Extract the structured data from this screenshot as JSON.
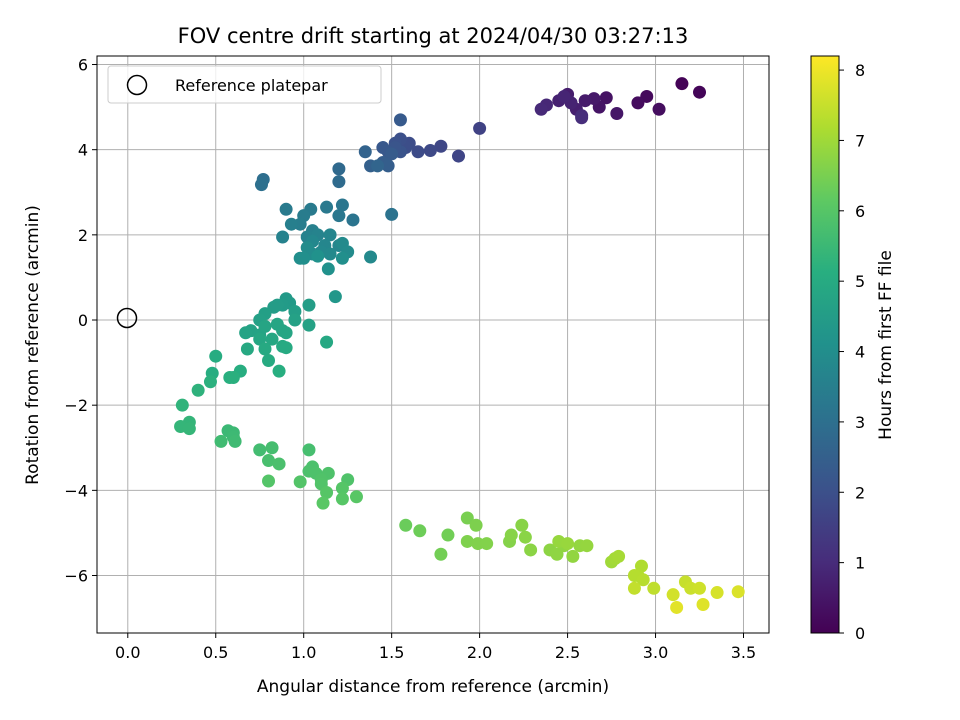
{
  "chart_data": {
    "type": "scatter",
    "title": "FOV centre drift starting at 2024/04/30 03:27:13",
    "xlabel": "Angular distance from reference (arcmin)",
    "ylabel": "Rotation from reference (arcmin)",
    "xlim": [
      -0.175,
      3.645
    ],
    "ylim": [
      -7.35,
      6.2
    ],
    "xticks": [
      "0.0",
      "0.5",
      "1.0",
      "1.5",
      "2.0",
      "2.5",
      "3.0",
      "3.5"
    ],
    "yticks": [
      "6",
      "4",
      "2",
      "0",
      "−2",
      "−4",
      "−6"
    ],
    "grid": true,
    "legend": {
      "position": "top-left",
      "entries": [
        "Reference platepar"
      ]
    },
    "reference_point": {
      "x": 0.0,
      "y": 0.0
    },
    "colorbar": {
      "label": "Hours from first FF file",
      "range": [
        0,
        8.2
      ],
      "ticks": [
        "0",
        "1",
        "2",
        "3",
        "4",
        "5",
        "6",
        "7",
        "8"
      ],
      "colormap": "viridis"
    },
    "points": [
      [
        3.15,
        5.55,
        0.05
      ],
      [
        3.25,
        5.35,
        0.1
      ],
      [
        2.95,
        5.25,
        0.2
      ],
      [
        2.9,
        5.1,
        0.25
      ],
      [
        3.02,
        4.95,
        0.3
      ],
      [
        2.72,
        5.22,
        0.4
      ],
      [
        2.68,
        5.0,
        0.45
      ],
      [
        2.78,
        4.85,
        0.5
      ],
      [
        2.65,
        5.2,
        0.55
      ],
      [
        2.6,
        5.15,
        0.6
      ],
      [
        2.5,
        5.3,
        0.65
      ],
      [
        2.55,
        4.95,
        0.7
      ],
      [
        2.45,
        5.15,
        0.75
      ],
      [
        2.52,
        5.1,
        0.8
      ],
      [
        2.48,
        5.25,
        0.85
      ],
      [
        2.38,
        5.05,
        0.9
      ],
      [
        2.35,
        4.95,
        0.95
      ],
      [
        2.58,
        4.8,
        1.0
      ],
      [
        2.58,
        4.75,
        1.05
      ],
      [
        2.0,
        4.5,
        1.6
      ],
      [
        1.88,
        3.85,
        1.7
      ],
      [
        1.78,
        4.08,
        1.75
      ],
      [
        1.72,
        3.98,
        1.8
      ],
      [
        1.65,
        3.95,
        1.85
      ],
      [
        1.6,
        4.15,
        1.9
      ],
      [
        1.58,
        4.05,
        1.95
      ],
      [
        1.55,
        4.25,
        2.0
      ],
      [
        1.52,
        4.15,
        2.05
      ],
      [
        1.55,
        3.95,
        2.1
      ],
      [
        1.52,
        4.05,
        2.15
      ],
      [
        1.48,
        3.95,
        2.2
      ],
      [
        1.45,
        4.05,
        2.25
      ],
      [
        1.55,
        4.7,
        2.3
      ],
      [
        1.5,
        3.9,
        2.35
      ],
      [
        1.45,
        3.7,
        2.4
      ],
      [
        1.48,
        3.62,
        2.45
      ],
      [
        1.38,
        3.62,
        2.5
      ],
      [
        1.35,
        3.95,
        2.6
      ],
      [
        1.42,
        3.62,
        2.65
      ],
      [
        1.2,
        3.55,
        2.8
      ],
      [
        1.2,
        3.25,
        2.85
      ],
      [
        0.77,
        3.3,
        2.95
      ],
      [
        0.76,
        3.18,
        3.0
      ],
      [
        1.5,
        2.48,
        3.1
      ],
      [
        1.28,
        2.35,
        3.15
      ],
      [
        1.22,
        2.7,
        3.2
      ],
      [
        1.2,
        2.45,
        3.25
      ],
      [
        1.13,
        2.65,
        3.3
      ],
      [
        1.04,
        2.6,
        3.35
      ],
      [
        1.0,
        2.45,
        3.4
      ],
      [
        0.9,
        2.6,
        3.35
      ],
      [
        0.98,
        2.25,
        3.45
      ],
      [
        0.93,
        2.25,
        3.5
      ],
      [
        1.05,
        2.1,
        3.55
      ],
      [
        1.02,
        1.95,
        3.6
      ],
      [
        0.88,
        1.95,
        3.62
      ],
      [
        1.08,
        2.0,
        3.65
      ],
      [
        1.15,
        2.0,
        3.7
      ],
      [
        1.12,
        1.75,
        3.72
      ],
      [
        1.2,
        1.75,
        3.75
      ],
      [
        1.05,
        1.85,
        3.78
      ],
      [
        1.1,
        1.6,
        3.8
      ],
      [
        1.15,
        1.55,
        3.85
      ],
      [
        1.22,
        1.8,
        3.88
      ],
      [
        1.25,
        1.6,
        3.9
      ],
      [
        1.38,
        1.48,
        3.85
      ],
      [
        1.02,
        1.7,
        3.92
      ],
      [
        1.05,
        1.55,
        3.95
      ],
      [
        0.98,
        1.45,
        4.0
      ],
      [
        1.0,
        1.45,
        4.02
      ],
      [
        1.22,
        1.45,
        4.05
      ],
      [
        1.14,
        1.2,
        4.1
      ],
      [
        1.08,
        1.5,
        4.12
      ],
      [
        1.18,
        0.55,
        4.3
      ],
      [
        0.9,
        0.5,
        4.4
      ],
      [
        0.92,
        0.4,
        4.42
      ],
      [
        0.88,
        0.35,
        4.45
      ],
      [
        0.85,
        0.35,
        4.48
      ],
      [
        0.83,
        0.3,
        4.5
      ],
      [
        1.03,
        0.35,
        4.52
      ],
      [
        0.95,
        0.2,
        4.55
      ],
      [
        0.78,
        0.15,
        4.6
      ],
      [
        0.75,
        0.0,
        4.62
      ],
      [
        0.95,
        0.0,
        4.65
      ],
      [
        1.03,
        -0.12,
        4.68
      ],
      [
        0.7,
        -0.25,
        4.7
      ],
      [
        0.67,
        -0.3,
        4.72
      ],
      [
        0.75,
        -0.35,
        4.74
      ],
      [
        0.78,
        -0.15,
        4.76
      ],
      [
        0.88,
        -0.25,
        4.78
      ],
      [
        0.9,
        -0.3,
        4.8
      ],
      [
        0.85,
        -0.1,
        4.82
      ],
      [
        0.75,
        -0.45,
        4.84
      ],
      [
        0.82,
        -0.45,
        4.86
      ],
      [
        1.13,
        -0.52,
        4.9
      ],
      [
        0.68,
        -0.68,
        4.92
      ],
      [
        0.78,
        -0.68,
        4.94
      ],
      [
        0.88,
        -0.62,
        4.96
      ],
      [
        0.9,
        -0.65,
        4.98
      ],
      [
        0.8,
        -0.95,
        5.0
      ],
      [
        0.5,
        -0.85,
        5.05
      ],
      [
        0.48,
        -1.25,
        5.08
      ],
      [
        0.64,
        -1.2,
        5.1
      ],
      [
        0.86,
        -1.2,
        5.12
      ],
      [
        0.58,
        -1.35,
        5.15
      ],
      [
        0.6,
        -1.35,
        5.18
      ],
      [
        0.47,
        -1.45,
        5.2
      ],
      [
        0.4,
        -1.65,
        5.25
      ],
      [
        0.31,
        -2.0,
        5.3
      ],
      [
        0.35,
        -2.4,
        5.35
      ],
      [
        0.3,
        -2.5,
        5.38
      ],
      [
        0.35,
        -2.55,
        5.4
      ],
      [
        0.57,
        -2.6,
        5.5
      ],
      [
        0.6,
        -2.65,
        5.52
      ],
      [
        0.6,
        -2.75,
        5.55
      ],
      [
        0.61,
        -2.85,
        5.58
      ],
      [
        0.53,
        -2.85,
        5.6
      ],
      [
        0.75,
        -3.05,
        5.65
      ],
      [
        0.82,
        -3.0,
        5.7
      ],
      [
        1.03,
        -3.05,
        5.72
      ],
      [
        0.8,
        -3.3,
        5.75
      ],
      [
        0.86,
        -3.38,
        5.78
      ],
      [
        1.05,
        -3.45,
        5.8
      ],
      [
        1.03,
        -3.55,
        5.82
      ],
      [
        1.07,
        -3.6,
        5.84
      ],
      [
        1.14,
        -3.6,
        5.86
      ],
      [
        1.25,
        -3.75,
        5.88
      ],
      [
        1.1,
        -3.75,
        5.9
      ],
      [
        1.1,
        -3.85,
        5.92
      ],
      [
        0.98,
        -3.8,
        5.94
      ],
      [
        0.8,
        -3.78,
        5.96
      ],
      [
        1.22,
        -3.95,
        5.98
      ],
      [
        1.13,
        -4.05,
        6.0
      ],
      [
        1.22,
        -4.2,
        6.02
      ],
      [
        1.3,
        -4.15,
        6.04
      ],
      [
        1.11,
        -4.3,
        6.06
      ],
      [
        1.58,
        -4.82,
        6.3
      ],
      [
        1.66,
        -4.95,
        6.35
      ],
      [
        1.82,
        -5.05,
        6.4
      ],
      [
        1.78,
        -5.5,
        6.42
      ],
      [
        1.93,
        -4.65,
        6.5
      ],
      [
        1.98,
        -4.82,
        6.55
      ],
      [
        1.93,
        -5.2,
        6.58
      ],
      [
        1.99,
        -5.25,
        6.6
      ],
      [
        2.04,
        -5.25,
        6.62
      ],
      [
        2.17,
        -5.2,
        6.65
      ],
      [
        2.18,
        -5.05,
        6.68
      ],
      [
        2.24,
        -4.82,
        6.7
      ],
      [
        2.26,
        -5.1,
        6.72
      ],
      [
        2.29,
        -5.4,
        6.74
      ],
      [
        2.4,
        -5.4,
        6.76
      ],
      [
        2.44,
        -5.5,
        6.78
      ],
      [
        2.48,
        -5.3,
        6.8
      ],
      [
        2.53,
        -5.55,
        6.82
      ],
      [
        2.57,
        -5.3,
        6.84
      ],
      [
        2.61,
        -5.3,
        6.86
      ],
      [
        2.45,
        -5.2,
        6.88
      ],
      [
        2.5,
        -5.25,
        6.9
      ],
      [
        2.75,
        -5.68,
        7.0
      ],
      [
        2.77,
        -5.6,
        7.05
      ],
      [
        2.79,
        -5.55,
        7.08
      ],
      [
        2.92,
        -5.78,
        7.2
      ],
      [
        2.9,
        -6.0,
        7.25
      ],
      [
        2.88,
        -6.0,
        7.28
      ],
      [
        2.93,
        -6.1,
        7.3
      ],
      [
        2.99,
        -6.3,
        7.4
      ],
      [
        2.88,
        -6.3,
        7.45
      ],
      [
        3.17,
        -6.15,
        7.5
      ],
      [
        3.2,
        -6.3,
        7.55
      ],
      [
        3.25,
        -6.3,
        7.6
      ],
      [
        3.1,
        -6.45,
        7.65
      ],
      [
        3.35,
        -6.4,
        7.7
      ],
      [
        3.47,
        -6.38,
        7.75
      ],
      [
        3.27,
        -6.68,
        7.8
      ],
      [
        3.12,
        -6.75,
        7.85
      ]
    ]
  }
}
